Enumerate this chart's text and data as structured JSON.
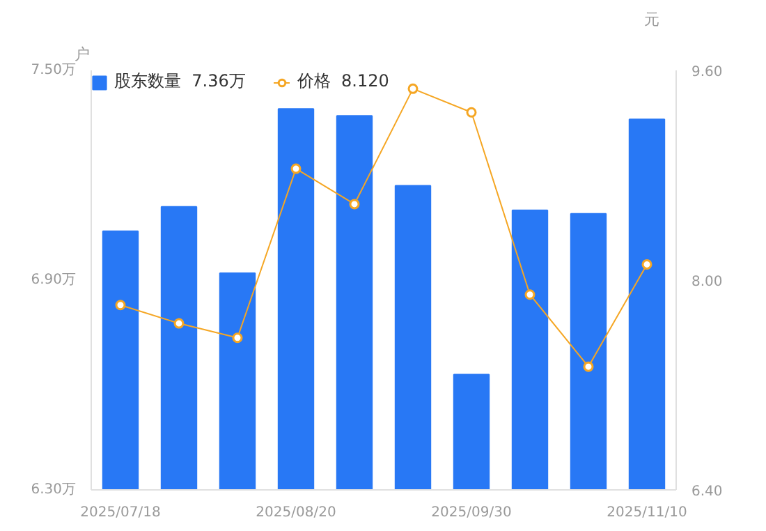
{
  "chart_data": {
    "type": "bar",
    "categories": [
      "2025/07/18",
      null,
      null,
      "2025/08/20",
      null,
      null,
      "2025/09/30",
      null,
      null,
      "2025/11/10"
    ],
    "ylabel": "户",
    "y2label": "元",
    "series": [
      {
        "name": "股东数量  7.36万",
        "color": "#2878f5",
        "values": [
          7.04,
          7.11,
          6.92,
          7.39,
          7.37,
          7.17,
          6.63,
          7.1,
          7.09,
          7.36
        ]
      },
      {
        "name": "价格  8.120",
        "type": "line",
        "axis": "y2",
        "color": "#f5a623",
        "marker": "circle",
        "values": [
          7.81,
          7.67,
          7.56,
          8.85,
          8.58,
          9.46,
          9.28,
          7.89,
          7.34,
          8.12
        ]
      }
    ],
    "ylim": [
      6.3,
      7.5
    ],
    "yticks": [
      {
        "value": 6.3,
        "label": "6.30万"
      },
      {
        "value": 6.9,
        "label": "6.90万"
      },
      {
        "value": 7.5,
        "label": "7.50万"
      }
    ],
    "y2lim": [
      6.4,
      9.6
    ],
    "y2ticks": [
      {
        "value": 6.4,
        "label": "6.40"
      },
      {
        "value": 8.0,
        "label": "8.00"
      },
      {
        "value": 9.6,
        "label": "9.60"
      }
    ],
    "grid": false,
    "legend": "top left"
  }
}
